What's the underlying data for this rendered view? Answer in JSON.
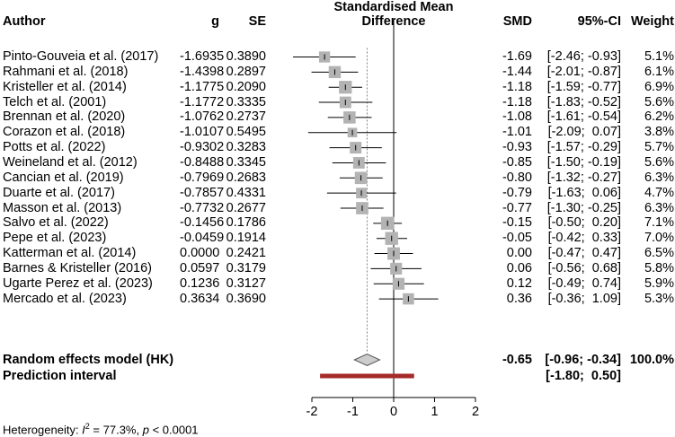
{
  "chart_data": {
    "type": "forest",
    "headers": {
      "author": "Author",
      "g": "g",
      "se": "SE",
      "plot_title_line1": "Standardised Mean",
      "plot_title_line2": "Difference",
      "smd": "SMD",
      "ci": "95%-CI",
      "weight": "Weight"
    },
    "studies": [
      {
        "author": "Pinto-Gouveia et al. (2017)",
        "g": "-1.6935",
        "se": "0.3890",
        "smd": -1.69,
        "smd_text": "-1.69",
        "lower": -2.46,
        "upper": -0.93,
        "ci_text": "[-2.46; -0.93]",
        "weight": 5.1,
        "weight_text": "5.1%"
      },
      {
        "author": "Rahmani et al. (2018)",
        "g": "-1.4398",
        "se": "0.2897",
        "smd": -1.44,
        "smd_text": "-1.44",
        "lower": -2.01,
        "upper": -0.87,
        "ci_text": "[-2.01; -0.87]",
        "weight": 6.1,
        "weight_text": "6.1%"
      },
      {
        "author": "Kristeller et al. (2014)",
        "g": "-1.1775",
        "se": "0.2090",
        "smd": -1.18,
        "smd_text": "-1.18",
        "lower": -1.59,
        "upper": -0.77,
        "ci_text": "[-1.59; -0.77]",
        "weight": 6.9,
        "weight_text": "6.9%"
      },
      {
        "author": "Telch et al. (2001)",
        "g": "-1.1772",
        "se": "0.3335",
        "smd": -1.18,
        "smd_text": "-1.18",
        "lower": -1.83,
        "upper": -0.52,
        "ci_text": "[-1.83; -0.52]",
        "weight": 5.6,
        "weight_text": "5.6%"
      },
      {
        "author": "Brennan et al. (2020)",
        "g": "-1.0762",
        "se": "0.2737",
        "smd": -1.08,
        "smd_text": "-1.08",
        "lower": -1.61,
        "upper": -0.54,
        "ci_text": "[-1.61; -0.54]",
        "weight": 6.2,
        "weight_text": "6.2%"
      },
      {
        "author": "Corazon et al. (2018)",
        "g": "-1.0107",
        "se": "0.5495",
        "smd": -1.01,
        "smd_text": "-1.01",
        "lower": -2.09,
        "upper": 0.07,
        "ci_text": "[-2.09;  0.07]",
        "weight": 3.8,
        "weight_text": "3.8%"
      },
      {
        "author": "Potts et al. (2022)",
        "g": "-0.9302",
        "se": "0.3283",
        "smd": -0.93,
        "smd_text": "-0.93",
        "lower": -1.57,
        "upper": -0.29,
        "ci_text": "[-1.57; -0.29]",
        "weight": 5.7,
        "weight_text": "5.7%"
      },
      {
        "author": "Weineland et al. (2012)",
        "g": "-0.8488",
        "se": "0.3345",
        "smd": -0.85,
        "smd_text": "-0.85",
        "lower": -1.5,
        "upper": -0.19,
        "ci_text": "[-1.50; -0.19]",
        "weight": 5.6,
        "weight_text": "5.6%"
      },
      {
        "author": "Cancian et al. (2019)",
        "g": "-0.7969",
        "se": "0.2683",
        "smd": -0.8,
        "smd_text": "-0.80",
        "lower": -1.32,
        "upper": -0.27,
        "ci_text": "[-1.32; -0.27]",
        "weight": 6.3,
        "weight_text": "6.3%"
      },
      {
        "author": "Duarte et al. (2017)",
        "g": "-0.7857",
        "se": "0.4331",
        "smd": -0.79,
        "smd_text": "-0.79",
        "lower": -1.63,
        "upper": 0.06,
        "ci_text": "[-1.63;  0.06]",
        "weight": 4.7,
        "weight_text": "4.7%"
      },
      {
        "author": "Masson et al. (2013)",
        "g": "-0.7732",
        "se": "0.2677",
        "smd": -0.77,
        "smd_text": "-0.77",
        "lower": -1.3,
        "upper": -0.25,
        "ci_text": "[-1.30; -0.25]",
        "weight": 6.3,
        "weight_text": "6.3%"
      },
      {
        "author": "Salvo et al. (2022)",
        "g": "-0.1456",
        "se": "0.1786",
        "smd": -0.15,
        "smd_text": "-0.15",
        "lower": -0.5,
        "upper": 0.2,
        "ci_text": "[-0.50;  0.20]",
        "weight": 7.1,
        "weight_text": "7.1%"
      },
      {
        "author": "Pepe et al. (2023)",
        "g": "-0.0459",
        "se": "0.1914",
        "smd": -0.05,
        "smd_text": "-0.05",
        "lower": -0.42,
        "upper": 0.33,
        "ci_text": "[-0.42;  0.33]",
        "weight": 7.0,
        "weight_text": "7.0%"
      },
      {
        "author": "Katterman et al. (2014)",
        "g": "0.0000",
        "se": "0.2421",
        "smd": 0.0,
        "smd_text": "0.00",
        "lower": -0.47,
        "upper": 0.47,
        "ci_text": "[-0.47;  0.47]",
        "weight": 6.5,
        "weight_text": "6.5%"
      },
      {
        "author": "Barnes & Kristeller (2016)",
        "g": "0.0597",
        "se": "0.3179",
        "smd": 0.06,
        "smd_text": "0.06",
        "lower": -0.56,
        "upper": 0.68,
        "ci_text": "[-0.56;  0.68]",
        "weight": 5.8,
        "weight_text": "5.8%"
      },
      {
        "author": "Ugarte Perez et al. (2023)",
        "g": "0.1236",
        "se": "0.3127",
        "smd": 0.12,
        "smd_text": "0.12",
        "lower": -0.49,
        "upper": 0.74,
        "ci_text": "[-0.49;  0.74]",
        "weight": 5.9,
        "weight_text": "5.9%"
      },
      {
        "author": "Mercado et al. (2023)",
        "g": "0.3634",
        "se": "0.3690",
        "smd": 0.36,
        "smd_text": "0.36",
        "lower": -0.36,
        "upper": 1.09,
        "ci_text": "[-0.36;  1.09]",
        "weight": 5.3,
        "weight_text": "5.3%"
      }
    ],
    "summary": {
      "label": "Random effects model (HK)",
      "smd": -0.65,
      "smd_text": "-0.65",
      "lower": -0.96,
      "upper": -0.34,
      "ci_text": "[-0.96; -0.34]",
      "weight_text": "100.0%"
    },
    "prediction": {
      "label": "Prediction interval",
      "lower": -1.8,
      "upper": 0.5,
      "ci_text": "[-1.80;  0.50]"
    },
    "x_axis": {
      "xlim": [
        -2,
        2
      ],
      "ticks": [
        -2,
        -1,
        0,
        1,
        2
      ],
      "tick_labels": [
        "-2",
        "-1",
        "0",
        "1",
        "2"
      ],
      "reference_line": 0
    },
    "heterogeneity": {
      "prefix": "Heterogeneity: ",
      "i2_symbol": "I",
      "i2_sup": "2",
      "i2_value": " = 77.3%, ",
      "p_symbol": "p",
      "p_value": " < 0.0001"
    },
    "colors": {
      "square": "#b3b3b3",
      "diamond": "#cccccc",
      "prediction": "#a52a2a",
      "line": "#000000",
      "dotted": "#808080"
    }
  }
}
